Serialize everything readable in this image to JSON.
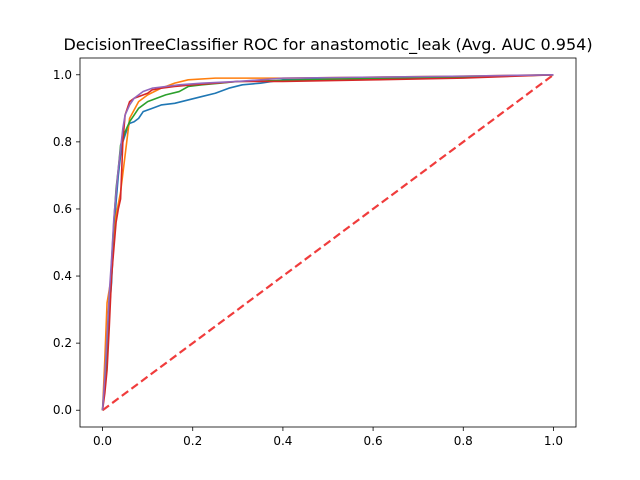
{
  "chart_data": {
    "type": "line",
    "title": "DecisionTreeClassifier ROC for anastomotic_leak (Avg. AUC 0.954)",
    "xlabel": "",
    "ylabel": "",
    "xlim": [
      -0.05,
      1.05
    ],
    "ylim": [
      -0.05,
      1.05
    ],
    "x_ticks": [
      "0.0",
      "0.2",
      "0.4",
      "0.6",
      "0.8",
      "1.0"
    ],
    "y_ticks": [
      "0.0",
      "0.2",
      "0.4",
      "0.6",
      "0.8",
      "1.0"
    ],
    "x_tick_values": [
      0.0,
      0.2,
      0.4,
      0.6,
      0.8,
      1.0
    ],
    "y_tick_values": [
      0.0,
      0.2,
      0.4,
      0.6,
      0.8,
      1.0
    ],
    "grid": false,
    "series": [
      {
        "color": "#1f77b4",
        "points": [
          [
            0.0,
            0.0
          ],
          [
            0.005,
            0.1
          ],
          [
            0.01,
            0.2
          ],
          [
            0.015,
            0.3
          ],
          [
            0.02,
            0.38
          ],
          [
            0.025,
            0.52
          ],
          [
            0.03,
            0.62
          ],
          [
            0.035,
            0.7
          ],
          [
            0.04,
            0.76
          ],
          [
            0.045,
            0.8
          ],
          [
            0.05,
            0.82
          ],
          [
            0.055,
            0.84
          ],
          [
            0.06,
            0.855
          ],
          [
            0.07,
            0.86
          ],
          [
            0.08,
            0.87
          ],
          [
            0.09,
            0.89
          ],
          [
            0.11,
            0.9
          ],
          [
            0.13,
            0.91
          ],
          [
            0.16,
            0.915
          ],
          [
            0.19,
            0.925
          ],
          [
            0.22,
            0.935
          ],
          [
            0.25,
            0.945
          ],
          [
            0.28,
            0.96
          ],
          [
            0.31,
            0.97
          ],
          [
            0.35,
            0.975
          ],
          [
            0.4,
            0.985
          ],
          [
            0.5,
            0.988
          ],
          [
            0.6,
            0.99
          ],
          [
            0.75,
            0.994
          ],
          [
            0.9,
            0.997
          ],
          [
            1.0,
            1.0
          ]
        ]
      },
      {
        "color": "#ff7f0e",
        "points": [
          [
            0.0,
            0.0
          ],
          [
            0.005,
            0.15
          ],
          [
            0.01,
            0.32
          ],
          [
            0.02,
            0.4
          ],
          [
            0.025,
            0.5
          ],
          [
            0.03,
            0.58
          ],
          [
            0.04,
            0.65
          ],
          [
            0.05,
            0.76
          ],
          [
            0.06,
            0.87
          ],
          [
            0.08,
            0.92
          ],
          [
            0.1,
            0.94
          ],
          [
            0.13,
            0.96
          ],
          [
            0.16,
            0.975
          ],
          [
            0.19,
            0.985
          ],
          [
            0.25,
            0.99
          ],
          [
            0.4,
            0.99
          ],
          [
            0.6,
            0.993
          ],
          [
            0.8,
            0.996
          ],
          [
            1.0,
            1.0
          ]
        ]
      },
      {
        "color": "#2ca02c",
        "points": [
          [
            0.0,
            0.0
          ],
          [
            0.005,
            0.08
          ],
          [
            0.01,
            0.16
          ],
          [
            0.015,
            0.3
          ],
          [
            0.02,
            0.44
          ],
          [
            0.025,
            0.56
          ],
          [
            0.03,
            0.66
          ],
          [
            0.035,
            0.72
          ],
          [
            0.04,
            0.79
          ],
          [
            0.05,
            0.83
          ],
          [
            0.06,
            0.86
          ],
          [
            0.07,
            0.88
          ],
          [
            0.08,
            0.9
          ],
          [
            0.1,
            0.92
          ],
          [
            0.12,
            0.93
          ],
          [
            0.14,
            0.94
          ],
          [
            0.17,
            0.95
          ],
          [
            0.19,
            0.965
          ],
          [
            0.22,
            0.97
          ],
          [
            0.26,
            0.975
          ],
          [
            0.3,
            0.98
          ],
          [
            0.4,
            0.983
          ],
          [
            0.55,
            0.988
          ],
          [
            0.7,
            0.99
          ],
          [
            0.85,
            0.995
          ],
          [
            1.0,
            1.0
          ]
        ]
      },
      {
        "color": "#d62728",
        "points": [
          [
            0.0,
            0.0
          ],
          [
            0.005,
            0.05
          ],
          [
            0.01,
            0.12
          ],
          [
            0.015,
            0.25
          ],
          [
            0.02,
            0.4
          ],
          [
            0.025,
            0.48
          ],
          [
            0.03,
            0.56
          ],
          [
            0.035,
            0.6
          ],
          [
            0.04,
            0.63
          ],
          [
            0.045,
            0.8
          ],
          [
            0.05,
            0.88
          ],
          [
            0.06,
            0.92
          ],
          [
            0.07,
            0.93
          ],
          [
            0.08,
            0.935
          ],
          [
            0.1,
            0.945
          ],
          [
            0.11,
            0.955
          ],
          [
            0.13,
            0.96
          ],
          [
            0.16,
            0.965
          ],
          [
            0.2,
            0.97
          ],
          [
            0.25,
            0.975
          ],
          [
            0.3,
            0.98
          ],
          [
            0.4,
            0.98
          ],
          [
            0.6,
            0.985
          ],
          [
            0.8,
            0.99
          ],
          [
            1.0,
            1.0
          ]
        ]
      },
      {
        "color": "#9467bd",
        "points": [
          [
            0.0,
            0.0
          ],
          [
            0.005,
            0.1
          ],
          [
            0.01,
            0.22
          ],
          [
            0.015,
            0.35
          ],
          [
            0.02,
            0.45
          ],
          [
            0.025,
            0.57
          ],
          [
            0.03,
            0.65
          ],
          [
            0.035,
            0.72
          ],
          [
            0.04,
            0.78
          ],
          [
            0.045,
            0.84
          ],
          [
            0.05,
            0.88
          ],
          [
            0.06,
            0.91
          ],
          [
            0.07,
            0.93
          ],
          [
            0.09,
            0.95
          ],
          [
            0.11,
            0.96
          ],
          [
            0.14,
            0.965
          ],
          [
            0.17,
            0.97
          ],
          [
            0.22,
            0.975
          ],
          [
            0.3,
            0.98
          ],
          [
            0.4,
            0.99
          ],
          [
            0.6,
            0.993
          ],
          [
            0.8,
            0.996
          ],
          [
            1.0,
            1.0
          ]
        ]
      }
    ],
    "reference_line": {
      "color": "#f03c3c",
      "style": "dashed",
      "points": [
        [
          0.0,
          0.0
        ],
        [
          1.0,
          1.0
        ]
      ]
    }
  }
}
